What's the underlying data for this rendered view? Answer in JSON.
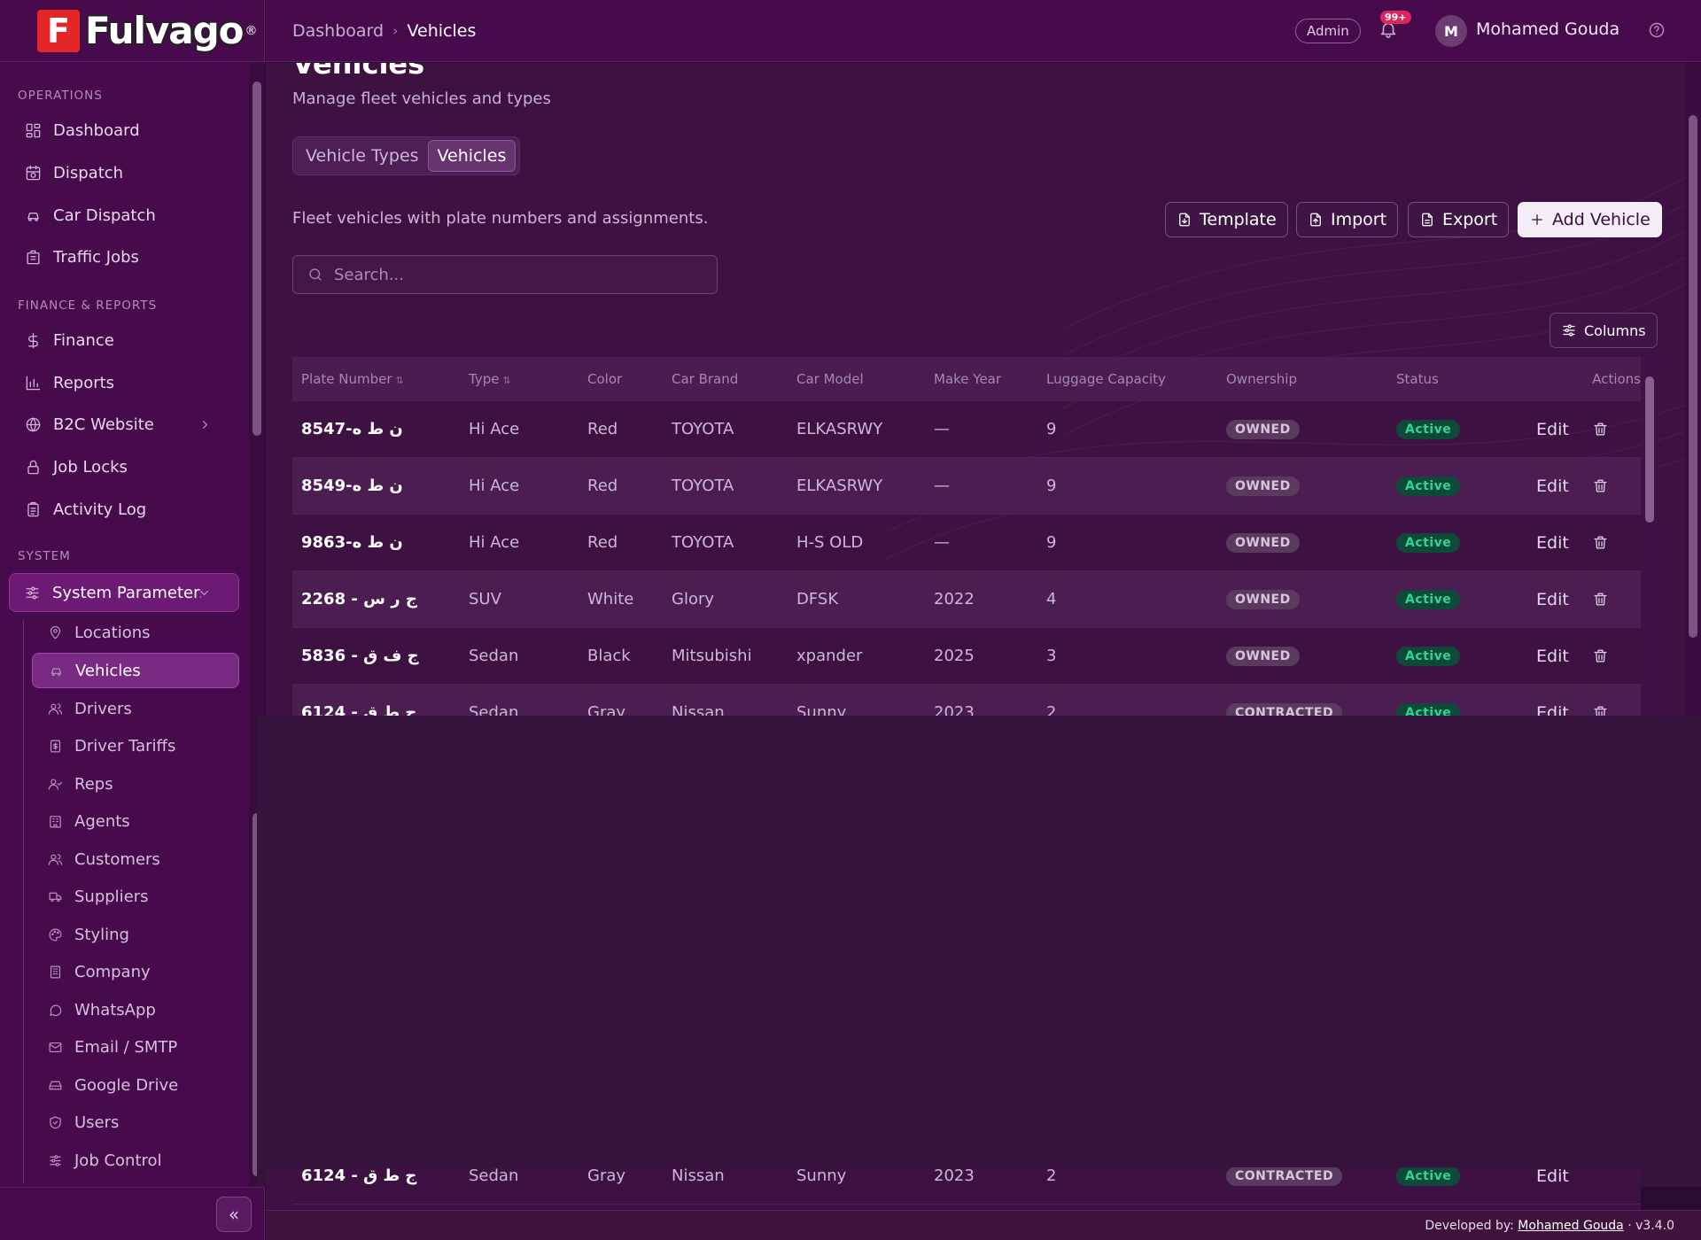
{
  "brand": {
    "name": "Fulvago",
    "mark": "F",
    "registered": "®"
  },
  "sidebar": {
    "sections": [
      {
        "title": "OPERATIONS"
      },
      {
        "title": "FINANCE & REPORTS"
      },
      {
        "title": "SYSTEM"
      }
    ],
    "items": [
      {
        "label": "Dashboard",
        "icon": "grid-icon"
      },
      {
        "label": "Dispatch",
        "icon": "clock-calendar-icon"
      },
      {
        "label": "Car Dispatch",
        "icon": "car-icon"
      },
      {
        "label": "Traffic Jobs",
        "icon": "building-icon"
      },
      {
        "label": "Finance",
        "icon": "dollar-icon"
      },
      {
        "label": "Reports",
        "icon": "bar-chart-icon"
      },
      {
        "label": "B2C Website",
        "icon": "globe-icon"
      },
      {
        "label": "Job Locks",
        "icon": "lock-icon"
      },
      {
        "label": "Activity Log",
        "icon": "clipboard-icon"
      },
      {
        "label": "System Parameters",
        "icon": "sliders-icon"
      }
    ],
    "subitems": [
      {
        "label": "Locations"
      },
      {
        "label": "Vehicles"
      },
      {
        "label": "Drivers"
      },
      {
        "label": "Driver Tariffs"
      },
      {
        "label": "Reps"
      },
      {
        "label": "Agents"
      },
      {
        "label": "Customers"
      },
      {
        "label": "Suppliers"
      },
      {
        "label": "Styling"
      },
      {
        "label": "Company"
      },
      {
        "label": "WhatsApp"
      },
      {
        "label": "Email / SMTP"
      },
      {
        "label": "Google Drive"
      },
      {
        "label": "Users"
      },
      {
        "label": "Job Control"
      }
    ],
    "collapse_icon": "«"
  },
  "header": {
    "breadcrumb": [
      "Dashboard",
      "Vehicles"
    ],
    "breadcrumb_sep": "›",
    "role": "Admin",
    "notifications": "99+",
    "user_initial": "M",
    "user_name": "Mohamed Gouda"
  },
  "page": {
    "title": "Vehicles",
    "subtitle": "Manage fleet vehicles and types",
    "tabs": [
      "Vehicle Types",
      "Vehicles"
    ],
    "description": "Fleet vehicles with plate numbers and assignments.",
    "buttons": {
      "template": "Template",
      "import": "Import",
      "export": "Export",
      "add": "Add Vehicle"
    },
    "search_placeholder": "Search...",
    "columns_label": "Columns"
  },
  "table": {
    "headers": [
      "Plate Number",
      "Type",
      "Color",
      "Car Brand",
      "Car Model",
      "Make Year",
      "Luggage Capacity",
      "Ownership",
      "Status",
      "Actions"
    ],
    "sort_icon": "⇅",
    "rows": [
      {
        "plate": "8547-ن ط ه",
        "type": "Hi Ace",
        "color": "Red",
        "brand": "TOYOTA",
        "model": "ELKASRWY",
        "year": "—",
        "luggage": "9",
        "ownership": "OWNED",
        "status": "Active",
        "action": "Edit"
      },
      {
        "plate": "8549-ن ط ه",
        "type": "Hi Ace",
        "color": "Red",
        "brand": "TOYOTA",
        "model": "ELKASRWY",
        "year": "—",
        "luggage": "9",
        "ownership": "OWNED",
        "status": "Active",
        "action": "Edit"
      },
      {
        "plate": "9863-ن ط ه",
        "type": "Hi Ace",
        "color": "Red",
        "brand": "TOYOTA",
        "model": "H-S OLD",
        "year": "—",
        "luggage": "9",
        "ownership": "OWNED",
        "status": "Active",
        "action": "Edit"
      },
      {
        "plate": "2268 - ج ر س",
        "type": "SUV",
        "color": "White",
        "brand": "Glory",
        "model": "DFSK",
        "year": "2022",
        "luggage": "4",
        "ownership": "OWNED",
        "status": "Active",
        "action": "Edit"
      },
      {
        "plate": "5836 - ج ف ق",
        "type": "Sedan",
        "color": "Black",
        "brand": "Mitsubishi",
        "model": "xpander",
        "year": "2025",
        "luggage": "3",
        "ownership": "OWNED",
        "status": "Active",
        "action": "Edit"
      },
      {
        "plate": "6124 - ج ط ق",
        "type": "Sedan",
        "color": "Gray",
        "brand": "Nissan",
        "model": "Sunny",
        "year": "2023",
        "luggage": "2",
        "ownership": "CONTRACTED",
        "status": "Active",
        "action": "Edit"
      }
    ]
  },
  "footer": {
    "prefix": "Developed by:",
    "author": "Mohamed Gouda",
    "version": "· v3.4.0"
  },
  "colors": {
    "sidebar_bg": "#470a4d",
    "main_bg": "#3d1242",
    "accent_active": "#2fd594",
    "brand_red": "#e52626"
  }
}
